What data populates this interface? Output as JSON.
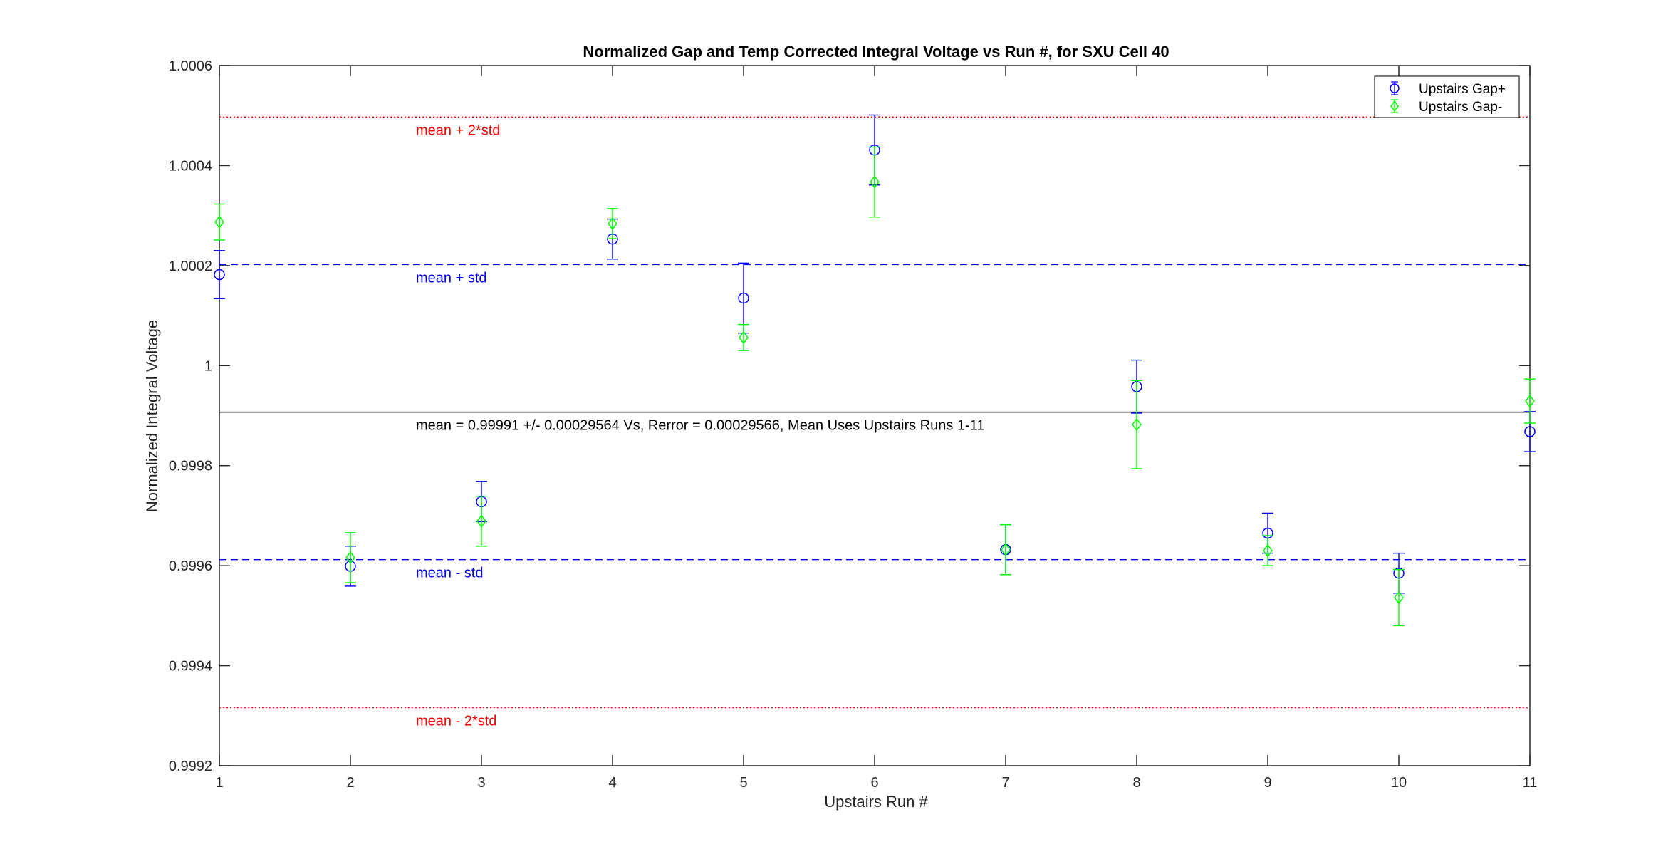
{
  "chart_data": {
    "type": "scatter",
    "title": "Normalized Gap and Temp Corrected Integral Voltage vs Run #, for SXU Cell 40",
    "xlabel": "Upstairs Run #",
    "ylabel": "Normalized Integral Voltage",
    "xlim": [
      1,
      11
    ],
    "ylim": [
      0.9992,
      1.0006
    ],
    "x_ticks": [
      "1",
      "2",
      "3",
      "4",
      "5",
      "6",
      "7",
      "8",
      "9",
      "10",
      "11"
    ],
    "y_ticks": [
      "0.9992",
      "0.9994",
      "0.9996",
      "0.9998",
      "1",
      "1.0002",
      "1.0004",
      "1.0006"
    ],
    "grid": false,
    "legend_position": "top-right",
    "series": [
      {
        "name": "Upstairs Gap+",
        "color": "#0000ff",
        "marker": "circle",
        "x": [
          1,
          2,
          3,
          4,
          5,
          6,
          7,
          8,
          9,
          10,
          11
        ],
        "y": [
          1.000182,
          0.999599,
          0.999728,
          1.000253,
          1.000135,
          1.000431,
          0.999632,
          0.999958,
          0.999665,
          0.999585,
          0.999868
        ],
        "err": [
          4.8e-05,
          4e-05,
          4e-05,
          4e-05,
          7e-05,
          7e-05,
          5e-05,
          5.3e-05,
          4e-05,
          4e-05,
          4e-05
        ]
      },
      {
        "name": "Upstairs Gap-",
        "color": "#00ff00",
        "marker": "diamond",
        "x": [
          1,
          2,
          3,
          4,
          5,
          6,
          7,
          8,
          9,
          10,
          11
        ],
        "y": [
          1.000287,
          0.999616,
          0.999689,
          1.000284,
          1.000056,
          1.000367,
          0.999632,
          0.999882,
          0.99963,
          0.999536,
          0.999929
        ],
        "err": [
          3.6e-05,
          5e-05,
          5e-05,
          3e-05,
          2.6e-05,
          7e-05,
          5e-05,
          8.8e-05,
          3e-05,
          5.6e-05,
          4.4e-05
        ]
      }
    ],
    "reference_lines": [
      {
        "label": "mean + 2*std",
        "y": 1.000497,
        "color": "#ff0000",
        "style": "dotted"
      },
      {
        "label": "mean + std",
        "y": 1.000202,
        "color": "#0000ff",
        "style": "dashed"
      },
      {
        "label": "mean = 0.99991 +/- 0.00029564 Vs, Rerror = 0.00029566, Mean Uses Upstairs Runs 1-11",
        "y": 0.999907,
        "color": "#000000",
        "style": "solid"
      },
      {
        "label": "mean - std",
        "y": 0.999612,
        "color": "#0000ff",
        "style": "dashed"
      },
      {
        "label": "mean - 2*std",
        "y": 0.999316,
        "color": "#ff0000",
        "style": "dotted"
      }
    ]
  }
}
